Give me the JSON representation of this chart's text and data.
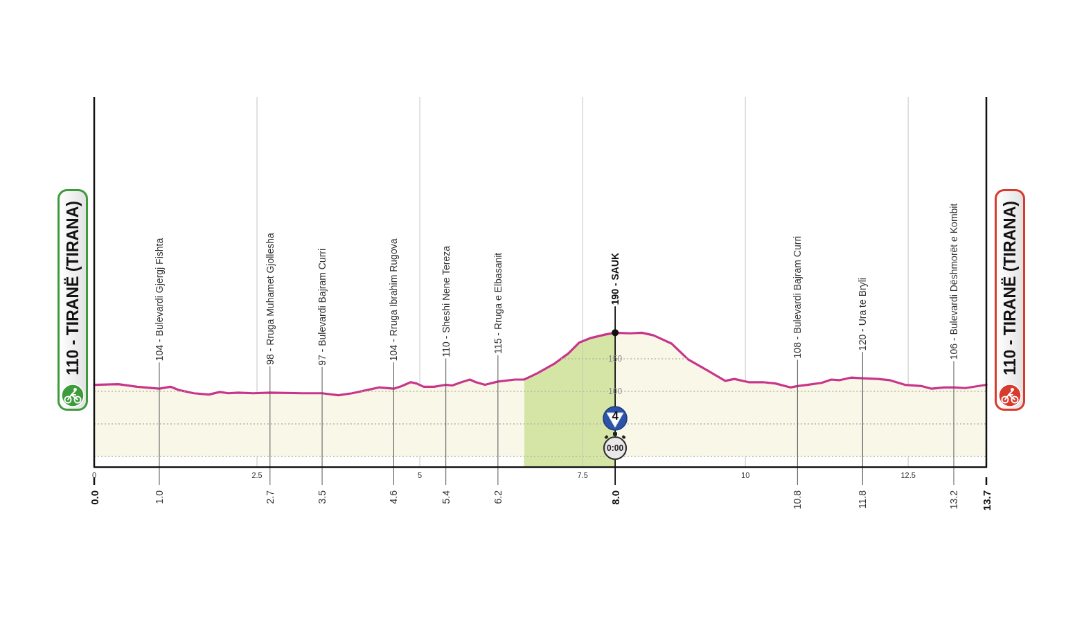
{
  "chart_data": {
    "type": "area",
    "x": [
      0,
      0.37,
      0.66,
      1,
      1.17,
      1.3,
      1.53,
      1.76,
      1.93,
      2.06,
      2.21,
      2.44,
      2.7,
      3.2,
      3.5,
      3.75,
      3.96,
      4.19,
      4.38,
      4.6,
      4.72,
      4.86,
      4.95,
      5.06,
      5.22,
      5.4,
      5.5,
      5.64,
      5.77,
      5.86,
      6,
      6.2,
      6.46,
      6.6,
      6.81,
      7.06,
      7.28,
      7.45,
      7.63,
      7.84,
      8,
      8.23,
      8.41,
      8.59,
      8.87,
      9.12,
      9.4,
      9.69,
      9.83,
      10.05,
      10.27,
      10.46,
      10.69,
      10.8,
      10.95,
      11.17,
      11.32,
      11.44,
      11.62,
      11.8,
      12.04,
      12.22,
      12.45,
      12.71,
      12.86,
      13.05,
      13.2,
      13.38,
      13.7
    ],
    "values": [
      110,
      111,
      107,
      104,
      107,
      102,
      97,
      95,
      99,
      97,
      98,
      97,
      98,
      97,
      97,
      94,
      97,
      102,
      106,
      104,
      108,
      114,
      112,
      107,
      107,
      110,
      109,
      114,
      118,
      114,
      110,
      115,
      118,
      118,
      128,
      142,
      158,
      175,
      182,
      187,
      190,
      189,
      190,
      186,
      173,
      149,
      133,
      116,
      119,
      114,
      114,
      112,
      106,
      108,
      110,
      113,
      118,
      117,
      121,
      120,
      119,
      117,
      110,
      108,
      104,
      106,
      106,
      105,
      110
    ],
    "color": "#c8358a",
    "xlim": [
      0,
      13.7
    ],
    "xticks": [
      0,
      2.5,
      5,
      7.5,
      10,
      12.5
    ],
    "x2lim": [
      0,
      13.7
    ],
    "x2ticks": [
      {
        "value": 0,
        "label": "0.0"
      },
      {
        "value": 1,
        "label": "1.0"
      },
      2.7,
      3.5,
      4.6,
      5.4,
      6.2,
      {
        "value": 8,
        "label": "8.0"
      },
      10.8,
      11.8,
      13.2,
      13.7
    ],
    "ylim": [
      -16,
      552
    ],
    "yticks": [
      {
        "value": 0,
        "label": null
      },
      {
        "value": 50,
        "label": null
      },
      100,
      150
    ],
    "grid": true,
    "bands": [
      {
        "axis": "x",
        "from": 6.6,
        "to": 8,
        "color": "#d5e5a6"
      }
    ],
    "annotations": [
      {
        "text": "110 - TIRANË (TIRANA)",
        "x": 0,
        "y": 110
      },
      {
        "text": "104 - Bulevardi Gjergj Fishta",
        "x": 1,
        "y": 104
      },
      {
        "text": "98 - Rruga Muhamet Gjollesha",
        "x": 2.7,
        "y": 98
      },
      {
        "text": "97 - Bulevardi Bajram Curri",
        "x": 3.5,
        "y": 97
      },
      {
        "text": "104 - Rruga Ibrahim Rugova",
        "x": 4.6,
        "y": 104
      },
      {
        "text": "110 - Sheshi Nene Tereza",
        "x": 5.4,
        "y": 110
      },
      {
        "text": "115 - Rruga e Elbasanit",
        "x": 6.2,
        "y": 115
      },
      {
        "text": "190 - SAUK",
        "x": 8,
        "y": 190
      },
      {
        "text": "4",
        "x": 8
      },
      {
        "text": "0:00",
        "x": 8
      },
      {
        "text": "108 - Bulevardi Bajram Curri",
        "x": 10.8,
        "y": 108
      },
      {
        "text": "120 - Ura te Bryli",
        "x": 11.8,
        "y": 120
      },
      {
        "text": "106 - Bulevardi Dëshmorët e Kombit",
        "x": 13.2,
        "y": 106
      },
      {
        "text": "110 - TIRANË (TIRANA)",
        "x": 13.7,
        "y": 110
      }
    ]
  }
}
